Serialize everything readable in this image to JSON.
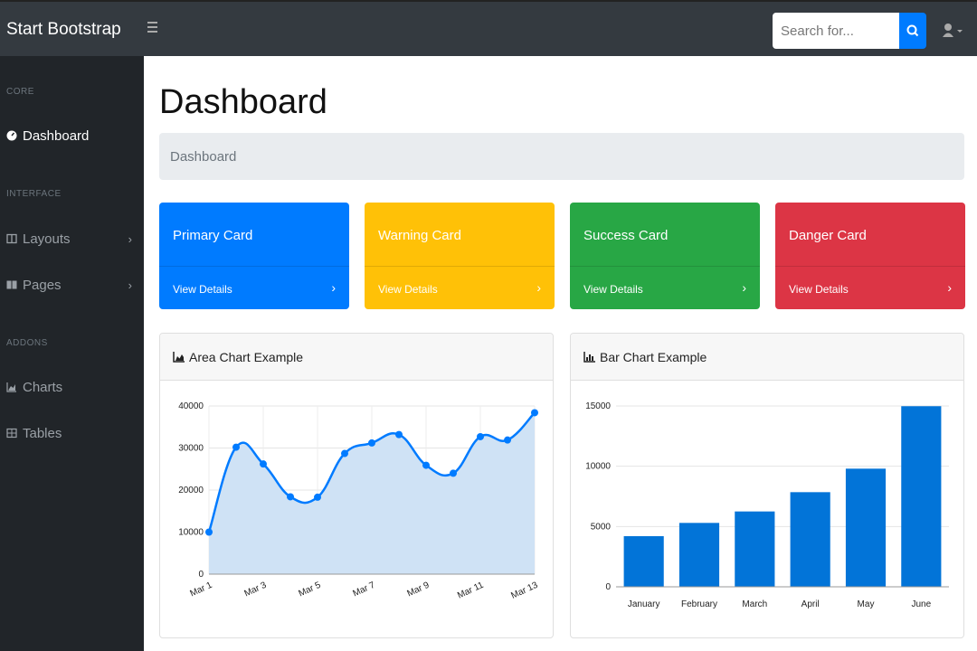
{
  "topnav": {
    "brand": "Start Bootstrap",
    "search": {
      "placeholder": "Search for...",
      "value": ""
    },
    "icons": {
      "toggle": "menu-icon",
      "search": "search-icon",
      "user": "user-icon"
    }
  },
  "sidebar": {
    "sections": [
      {
        "heading": "CORE",
        "items": [
          {
            "label": "Dashboard",
            "icon": "dashboard-icon",
            "active": true,
            "chevron": ""
          }
        ]
      },
      {
        "heading": "INTERFACE",
        "items": [
          {
            "label": "Layouts",
            "icon": "columns-icon",
            "active": false,
            "chevron": "›"
          },
          {
            "label": "Pages",
            "icon": "book-icon",
            "active": false,
            "chevron": "›"
          }
        ]
      },
      {
        "heading": "ADDONS",
        "items": [
          {
            "label": "Charts",
            "icon": "chart-icon",
            "active": false,
            "chevron": ""
          },
          {
            "label": "Tables",
            "icon": "table-icon",
            "active": false,
            "chevron": ""
          }
        ]
      }
    ]
  },
  "main": {
    "title": "Dashboard",
    "breadcrumb": "Dashboard",
    "cards": [
      {
        "title": "Primary Card",
        "link": "View Details",
        "arrow": "›",
        "color": "#007bff"
      },
      {
        "title": "Warning Card",
        "link": "View Details",
        "arrow": "›",
        "color": "#ffc107"
      },
      {
        "title": "Success Card",
        "link": "View Details",
        "arrow": "›",
        "color": "#28a745"
      },
      {
        "title": "Danger Card",
        "link": "View Details",
        "arrow": "›",
        "color": "#dc3545"
      }
    ],
    "area_panel": {
      "title": "Area Chart Example",
      "icon": "area-chart-icon"
    },
    "bar_panel": {
      "title": "Bar Chart Example",
      "icon": "bar-chart-icon"
    }
  },
  "chart_data": [
    {
      "type": "area",
      "title": "Area Chart Example",
      "x": [
        "Mar 1",
        "Mar 2",
        "Mar 3",
        "Mar 4",
        "Mar 5",
        "Mar 6",
        "Mar 7",
        "Mar 8",
        "Mar 9",
        "Mar 10",
        "Mar 11",
        "Mar 12",
        "Mar 13"
      ],
      "xticks": [
        "Mar 1",
        "Mar 3",
        "Mar 5",
        "Mar 7",
        "Mar 9",
        "Mar 11",
        "Mar 13"
      ],
      "values": [
        10000,
        30200,
        26200,
        18400,
        18300,
        28700,
        31200,
        33200,
        25900,
        24000,
        32700,
        31900,
        38400
      ],
      "ylim": [
        0,
        40000
      ],
      "yticks": [
        0,
        10000,
        20000,
        30000,
        40000
      ],
      "color": "#007bff",
      "fill": "#cfe2f5",
      "grid": true
    },
    {
      "type": "bar",
      "title": "Bar Chart Example",
      "categories": [
        "January",
        "February",
        "March",
        "April",
        "May",
        "June"
      ],
      "values": [
        4200,
        5300,
        6250,
        7850,
        9800,
        14980
      ],
      "ylim": [
        0,
        15000
      ],
      "yticks": [
        0,
        5000,
        10000,
        15000
      ],
      "color": "#0274d8",
      "grid": true
    }
  ]
}
